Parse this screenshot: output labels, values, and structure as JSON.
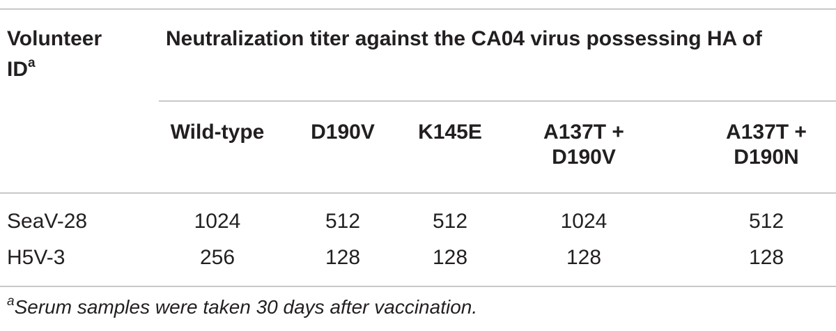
{
  "table": {
    "header": {
      "volunteer_label": "Volunteer",
      "volunteer_label_line2": "ID",
      "volunteer_footnote_mark": "a",
      "group_title": "Neutralization titer against the CA04 virus possessing HA of",
      "columns": [
        {
          "line1": "Wild-type",
          "line2": ""
        },
        {
          "line1": "D190V",
          "line2": ""
        },
        {
          "line1": "K145E",
          "line2": ""
        },
        {
          "line1": "A137T +",
          "line2": "D190V"
        },
        {
          "line1": "A137T +",
          "line2": "D190N"
        }
      ]
    },
    "rows": [
      {
        "id": "SeaV-28",
        "values": [
          "1024",
          "512",
          "512",
          "1024",
          "512"
        ]
      },
      {
        "id": "H5V-3",
        "values": [
          "256",
          "128",
          "128",
          "128",
          "128"
        ]
      }
    ],
    "footnote": {
      "mark": "a",
      "text": "Serum samples were taken 30 days after vaccination."
    }
  }
}
